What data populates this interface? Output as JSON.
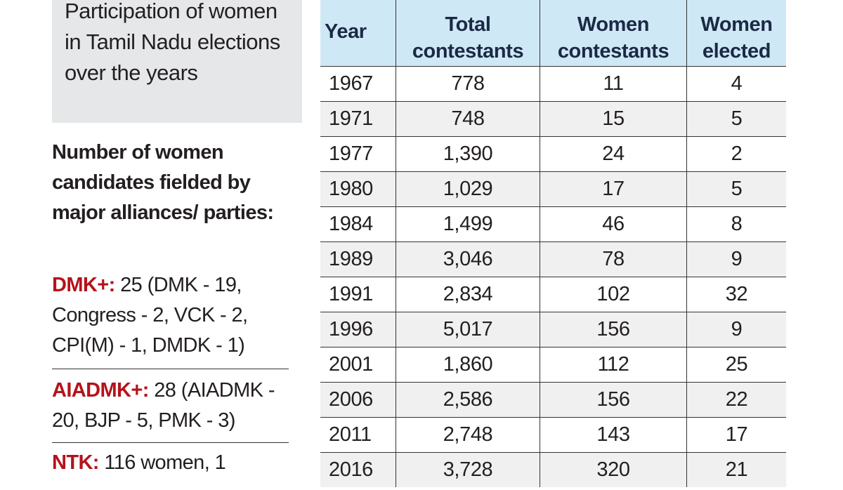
{
  "sidebar": {
    "title": "Participation of women in Tamil Nadu elections over the years",
    "heading": "Number of women candidates fielded by major alliances/ parties:",
    "entries": [
      {
        "party": "DMK+:",
        "text": "25 (DMK - 19, Congress - 2, VCK - 2, CPI(M) - 1, DMDK - 1)"
      },
      {
        "party": "AIADMK+:",
        "text": "28 (AIADMK - 20, BJP - 5, PMK - 3)"
      },
      {
        "party": "NTK:",
        "text": "116 women, 1"
      }
    ]
  },
  "table": {
    "headers": [
      "Year",
      "Total contestants",
      "Women contestants",
      "Women elected"
    ],
    "rows": [
      [
        "1967",
        "778",
        "11",
        "4"
      ],
      [
        "1971",
        "748",
        "15",
        "5"
      ],
      [
        "1977",
        "1,390",
        "24",
        "2"
      ],
      [
        "1980",
        "1,029",
        "17",
        "5"
      ],
      [
        "1984",
        "1,499",
        "46",
        "8"
      ],
      [
        "1989",
        "3,046",
        "78",
        "9"
      ],
      [
        "1991",
        "2,834",
        "102",
        "32"
      ],
      [
        "1996",
        "5,017",
        "156",
        "9"
      ],
      [
        "2001",
        "1,860",
        "112",
        "25"
      ],
      [
        "2006",
        "2,586",
        "156",
        "22"
      ],
      [
        "2011",
        "2,748",
        "143",
        "17"
      ],
      [
        "2016",
        "3,728",
        "320",
        "21"
      ]
    ]
  }
}
